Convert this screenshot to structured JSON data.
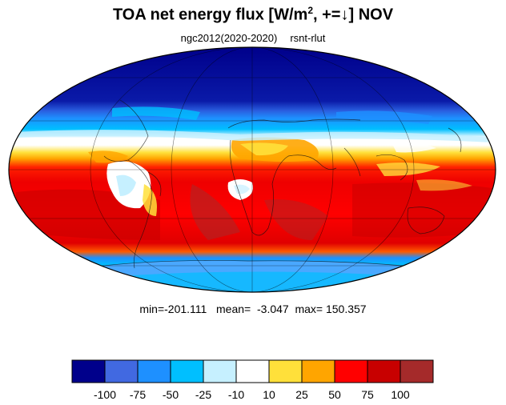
{
  "title": {
    "main": "TOA net energy flux  [W/m",
    "sup": "2",
    "after_sup": ", +=",
    "arrow": "↓",
    "month": "] NOV"
  },
  "subtitle": {
    "model": "ngc2012(2020-2020)",
    "variable": "rsnt-rlut"
  },
  "stats": {
    "min": "min=-201.111",
    "mean": "mean=  -3.047",
    "max": "max= 150.357"
  },
  "colorbar": {
    "colors": [
      "#00008b",
      "#4169e1",
      "#1e90ff",
      "#00bfff",
      "#c6f0ff",
      "#ffffff",
      "#ffe03a",
      "#ffa500",
      "#ff0000",
      "#c80000",
      "#a52a2a"
    ],
    "labels": [
      "-100",
      "-75",
      "-50",
      "-25",
      "-10",
      "10",
      "25",
      "50",
      "75",
      "100"
    ]
  }
}
